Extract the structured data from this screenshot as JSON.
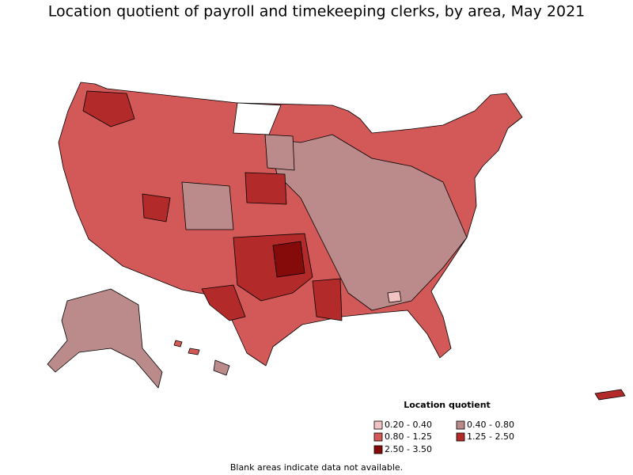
{
  "title": "Location quotient of payroll and timekeeping clerks, by area, May 2021",
  "legend": {
    "title": "Location quotient",
    "items": [
      {
        "label": "0.20 - 0.40",
        "color": "#f3c3c3"
      },
      {
        "label": "0.40 - 0.80",
        "color": "#bb8b8b"
      },
      {
        "label": "0.80 - 1.25",
        "color": "#d35858"
      },
      {
        "label": "1.25 - 2.50",
        "color": "#b22a2a"
      },
      {
        "label": "2.50 - 3.50",
        "color": "#850b0b"
      }
    ]
  },
  "footnote": "Blank areas indicate data not available."
}
